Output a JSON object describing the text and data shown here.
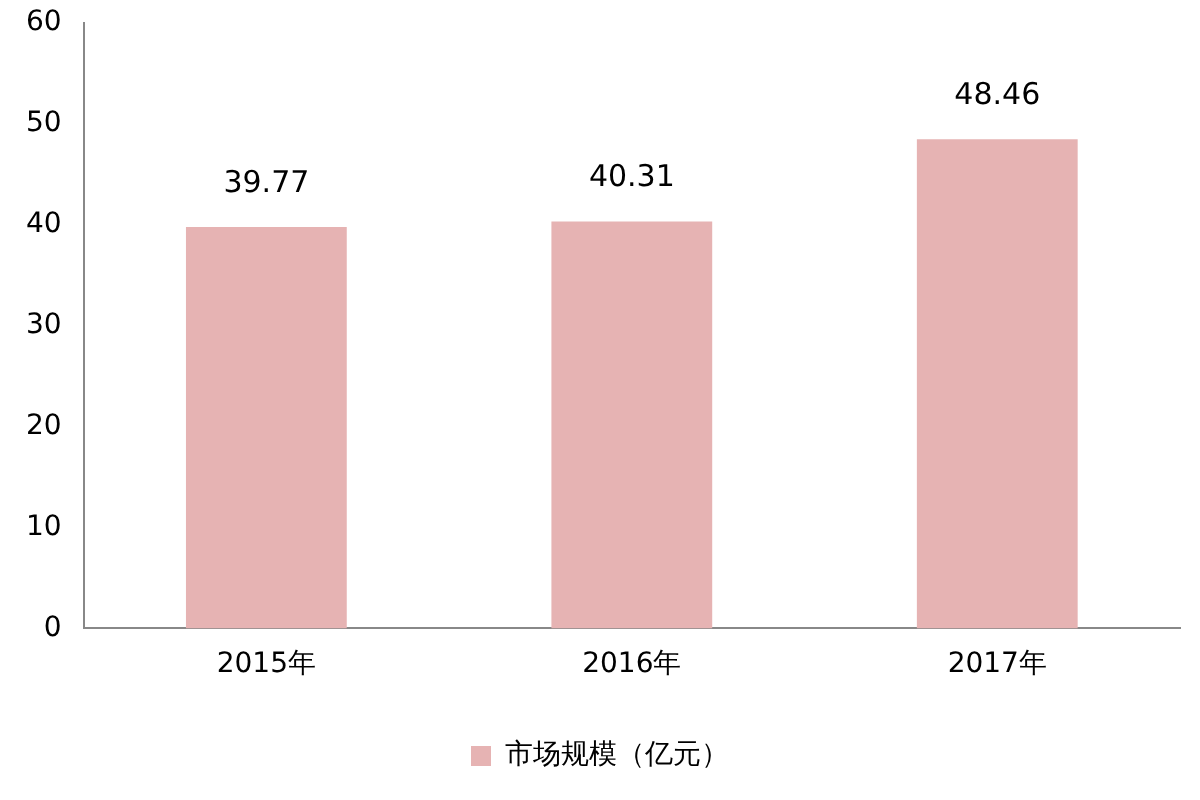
{
  "chart_data": {
    "type": "bar",
    "categories": [
      "2015年",
      "2016年",
      "2017年"
    ],
    "series": [
      {
        "name": "市场规模（亿元）",
        "color": "#e6b3b3",
        "values": [
          39.77,
          40.31,
          48.46
        ]
      }
    ],
    "ylim": [
      0,
      60
    ],
    "yticks": [
      0,
      10,
      20,
      30,
      40,
      50,
      60
    ],
    "grid": false,
    "legend": "bottom",
    "data_labels": true
  }
}
